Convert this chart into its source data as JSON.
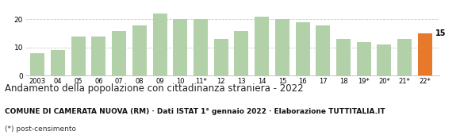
{
  "categories": [
    "2003",
    "04",
    "05",
    "06",
    "07",
    "08",
    "09",
    "10",
    "11*",
    "12",
    "13",
    "14",
    "15",
    "16",
    "17",
    "18",
    "19*",
    "20*",
    "21*",
    "22*"
  ],
  "values": [
    8,
    9,
    14,
    14,
    16,
    18,
    22,
    20,
    20,
    13,
    16,
    21,
    20,
    19,
    18,
    13,
    12,
    11,
    13,
    15
  ],
  "bar_colors": [
    "#b2d1a8",
    "#b2d1a8",
    "#b2d1a8",
    "#b2d1a8",
    "#b2d1a8",
    "#b2d1a8",
    "#b2d1a8",
    "#b2d1a8",
    "#b2d1a8",
    "#b2d1a8",
    "#b2d1a8",
    "#b2d1a8",
    "#b2d1a8",
    "#b2d1a8",
    "#b2d1a8",
    "#b2d1a8",
    "#b2d1a8",
    "#b2d1a8",
    "#b2d1a8",
    "#e8792a"
  ],
  "last_value_label": "15",
  "ylim": [
    0,
    25
  ],
  "yticks": [
    0,
    10,
    20
  ],
  "title": "Andamento della popolazione con cittadinanza straniera - 2022",
  "subtitle": "COMUNE DI CAMERATA NUOVA (RM) · Dati ISTAT 1° gennaio 2022 · Elaborazione TUTTITALIA.IT",
  "footnote": "(*) post-censimento",
  "title_fontsize": 8.5,
  "subtitle_fontsize": 6.5,
  "footnote_fontsize": 6.5,
  "background_color": "#ffffff",
  "grid_color": "#cccccc"
}
